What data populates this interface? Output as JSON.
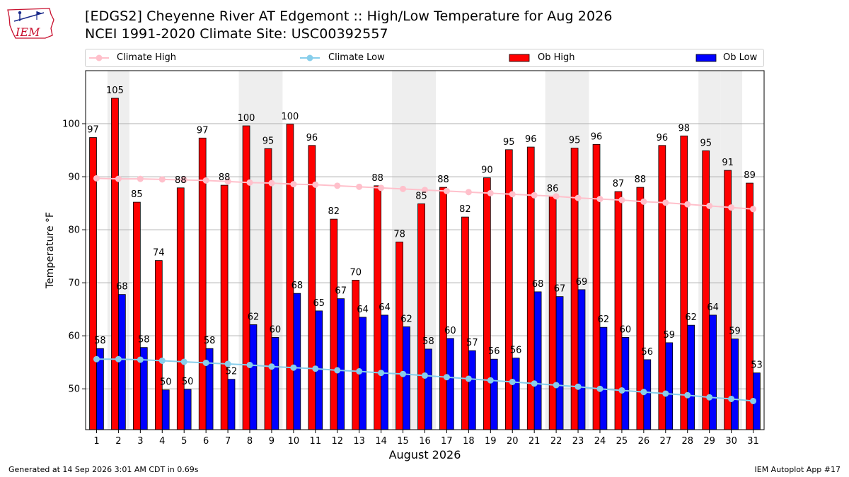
{
  "header": {
    "title": "[EDGS2] Cheyenne River  AT Edgemont :: High/Low Temperature for Aug 2026",
    "subtitle": "NCEI 1991-2020 Climate Site: USC00392557",
    "logo_text": "IEM"
  },
  "legend": {
    "climate_high": "Climate High",
    "climate_low": "Climate Low",
    "ob_high": "Ob High",
    "ob_low": "Ob Low"
  },
  "footer": {
    "generated": "Generated at 14 Sep 2026 3:01 AM CDT in 0.69s",
    "app": "IEM Autoplot App #17"
  },
  "colors": {
    "ob_high": "#ff0000",
    "ob_low": "#0000ff",
    "climate_high": "#ffc0cb",
    "climate_low": "#87ceeb",
    "weekend_band": "#eeeeee"
  },
  "chart_data": {
    "type": "bar",
    "xlabel": "August 2026",
    "ylabel": "Temperature °F",
    "ylim": [
      42.3,
      110
    ],
    "yticks": [
      50,
      60,
      70,
      80,
      90,
      100
    ],
    "grid": true,
    "legend_position": "top",
    "categories": [
      "1",
      "2",
      "3",
      "4",
      "5",
      "6",
      "7",
      "8",
      "9",
      "10",
      "11",
      "12",
      "13",
      "14",
      "15",
      "16",
      "17",
      "18",
      "19",
      "20",
      "21",
      "22",
      "23",
      "24",
      "25",
      "26",
      "27",
      "28",
      "29",
      "30",
      "31"
    ],
    "shaded_days": [
      2,
      8,
      9,
      15,
      16,
      22,
      23,
      29,
      30
    ],
    "series": [
      {
        "name": "Ob High",
        "type": "bar",
        "values": [
          97,
          105,
          85,
          74,
          88,
          97,
          88,
          100,
          95,
          100,
          96,
          82,
          70,
          88,
          78,
          85,
          88,
          82,
          90,
          95,
          96,
          86,
          95,
          96,
          87,
          88,
          96,
          98,
          95,
          91,
          89
        ],
        "raw": [
          97.4,
          104.8,
          85.2,
          74.2,
          87.9,
          97.3,
          88.4,
          99.6,
          95.3,
          99.9,
          95.9,
          82.0,
          70.5,
          88.3,
          77.7,
          84.9,
          88.0,
          82.4,
          89.8,
          95.1,
          95.6,
          86.3,
          95.4,
          96.1,
          87.2,
          88.0,
          95.9,
          97.7,
          94.9,
          91.2,
          88.8
        ]
      },
      {
        "name": "Ob Low",
        "type": "bar",
        "values": [
          58,
          68,
          58,
          50,
          50,
          58,
          52,
          62,
          60,
          68,
          65,
          67,
          64,
          64,
          62,
          58,
          60,
          57,
          56,
          56,
          68,
          67,
          69,
          62,
          60,
          56,
          59,
          62,
          64,
          59,
          53
        ],
        "raw": [
          57.6,
          67.8,
          57.8,
          49.8,
          49.9,
          57.6,
          51.8,
          62.1,
          59.7,
          68.0,
          64.7,
          67.0,
          63.5,
          63.9,
          61.7,
          57.5,
          59.5,
          57.2,
          55.6,
          55.8,
          68.3,
          67.4,
          68.7,
          61.6,
          59.7,
          55.5,
          58.7,
          62.0,
          63.9,
          59.4,
          53.0
        ]
      },
      {
        "name": "Climate High",
        "type": "line",
        "values": [
          89.7,
          89.6,
          89.6,
          89.5,
          89.4,
          89.3,
          89.1,
          88.9,
          88.8,
          88.6,
          88.5,
          88.3,
          88.1,
          87.9,
          87.7,
          87.5,
          87.3,
          87.1,
          86.9,
          86.7,
          86.5,
          86.3,
          86.0,
          85.8,
          85.6,
          85.3,
          85.1,
          84.8,
          84.5,
          84.2,
          83.9
        ]
      },
      {
        "name": "Climate Low",
        "type": "line",
        "values": [
          55.6,
          55.6,
          55.5,
          55.3,
          55.1,
          54.9,
          54.7,
          54.5,
          54.2,
          54.0,
          53.8,
          53.5,
          53.3,
          53.0,
          52.8,
          52.5,
          52.2,
          51.9,
          51.6,
          51.3,
          51.0,
          50.7,
          50.4,
          50.0,
          49.7,
          49.4,
          49.1,
          48.8,
          48.4,
          48.1,
          47.7
        ]
      }
    ]
  }
}
